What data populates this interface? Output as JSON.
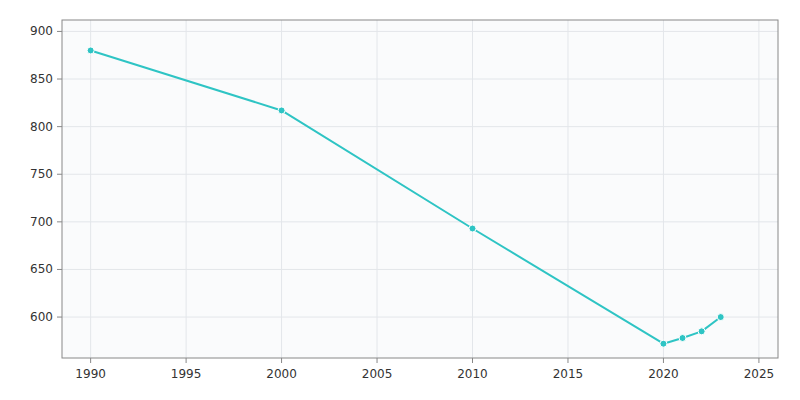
{
  "chart_data": {
    "type": "line",
    "x": [
      1990,
      2000,
      2010,
      2020,
      2021,
      2022,
      2023
    ],
    "values": [
      880,
      817,
      693,
      572,
      578,
      585,
      600
    ],
    "color": "#2EC4C4",
    "marker": "circle",
    "xlim": [
      1988.5,
      2026
    ],
    "ylim": [
      557,
      912
    ],
    "xticks": [
      1990,
      1995,
      2000,
      2005,
      2010,
      2015,
      2020,
      2025
    ],
    "yticks": [
      600,
      650,
      700,
      750,
      800,
      850,
      900
    ],
    "grid": true
  }
}
